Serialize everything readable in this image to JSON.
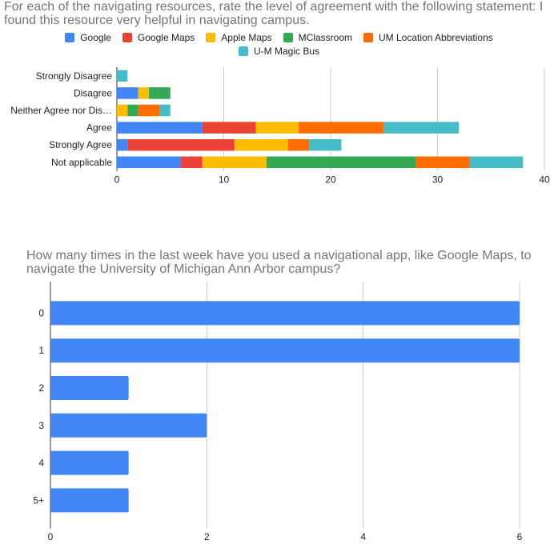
{
  "chart_data": [
    {
      "type": "bar",
      "orientation": "horizontal",
      "stacked": true,
      "title": "For each of the navigating resources, rate the level of agreement with the following statement: I found this resource very helpful in navigating campus.",
      "categories": [
        "Strongly Disagree",
        "Disagree",
        "Neither Agree nor Dis…",
        "Agree",
        "Strongly Agree",
        "Not applicable"
      ],
      "series": [
        {
          "name": "Google",
          "color": "#4285f4",
          "values": [
            0,
            2,
            0,
            8,
            1,
            6
          ]
        },
        {
          "name": "Google Maps",
          "color": "#ea4335",
          "values": [
            0,
            0,
            0,
            5,
            10,
            2
          ]
        },
        {
          "name": "Apple Maps",
          "color": "#fbbc04",
          "values": [
            0,
            1,
            1,
            4,
            5,
            6
          ]
        },
        {
          "name": "MClassroom",
          "color": "#34a853",
          "values": [
            0,
            2,
            1,
            0,
            0,
            14
          ]
        },
        {
          "name": "UM Location Abbreviations",
          "color": "#ff6d01",
          "values": [
            0,
            0,
            2,
            8,
            2,
            5
          ]
        },
        {
          "name": "U-M Magic Bus",
          "color": "#46bdc6",
          "values": [
            1,
            0,
            1,
            7,
            3,
            5
          ]
        }
      ],
      "xlim": [
        0,
        40
      ],
      "xticks": [
        0,
        10,
        20,
        30,
        40
      ],
      "legend": "top"
    },
    {
      "type": "bar",
      "orientation": "horizontal",
      "title": "How many times in the last week have you used a navigational app, like Google Maps, to navigate the University of Michigan Ann Arbor campus?",
      "categories": [
        "0",
        "1",
        "2",
        "3",
        "4",
        "5+"
      ],
      "values": [
        6,
        6,
        1,
        2,
        1,
        1
      ],
      "color": "#4285f4",
      "xlim": [
        0,
        6
      ],
      "xticks": [
        0,
        2,
        4,
        6
      ]
    }
  ]
}
